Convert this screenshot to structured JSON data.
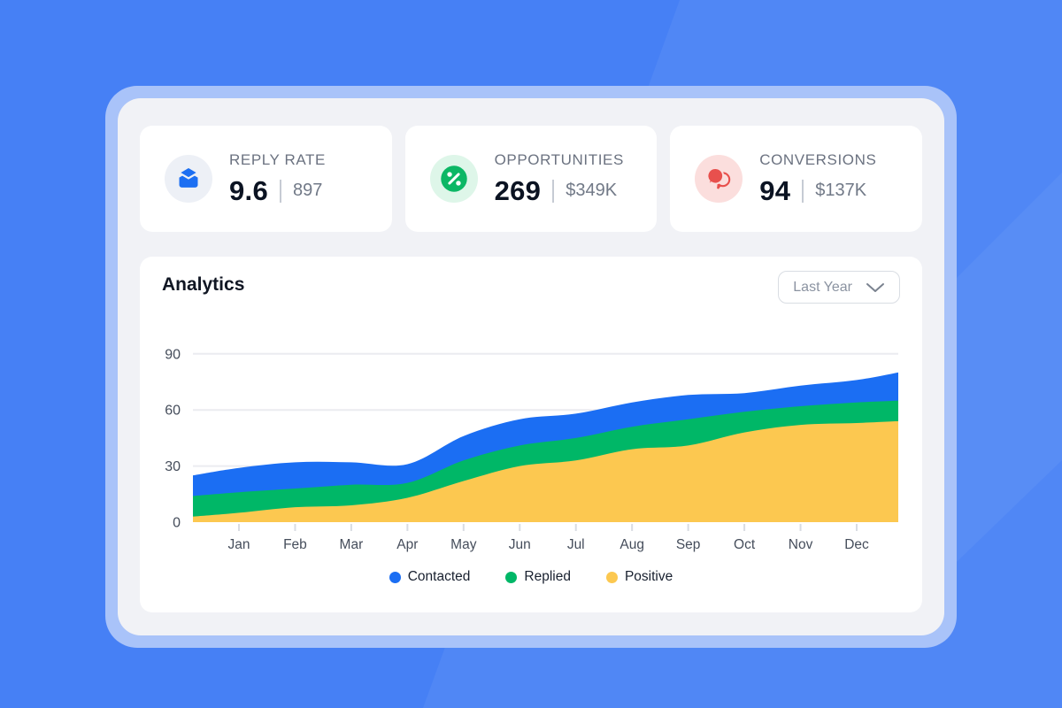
{
  "colors": {
    "background": "#4680F5",
    "frame": "#A9C3F9",
    "panel": "#F1F2F6",
    "card": "#FFFFFF",
    "grid": "#EBECF0",
    "axis_text": "#454D5B",
    "tick": "#D9DCE2"
  },
  "stats": [
    {
      "label": "REPLY RATE",
      "value": "9.6",
      "secondary": "897",
      "icon": "envelope-icon",
      "icon_color": "#1D6FF2",
      "icon_bg": "#EDF0F6"
    },
    {
      "label": "OPPORTUNITIES",
      "value": "269",
      "secondary": "$349K",
      "icon": "percent-icon",
      "icon_color": "#0CB765",
      "icon_bg": "#DEF6E9"
    },
    {
      "label": "CONVERSIONS",
      "value": "94",
      "secondary": "$137K",
      "icon": "chat-bubbles-icon",
      "icon_color": "#E8504D",
      "icon_bg": "#FBDEDD"
    }
  ],
  "analytics": {
    "title": "Analytics",
    "range_selector": {
      "value": "Last Year"
    }
  },
  "chart_data": {
    "type": "area",
    "stacked": true,
    "title": "Analytics",
    "x_labels": [
      "",
      "Jan",
      "Feb",
      "Mar",
      "Apr",
      "May",
      "Jun",
      "Jul",
      "Aug",
      "Sep",
      "Oct",
      "Nov",
      "Dec",
      ""
    ],
    "series": [
      {
        "name": "Contacted",
        "color": "#1B6EF3",
        "values": [
          11,
          13,
          14,
          12,
          10,
          13,
          14,
          13,
          13,
          13,
          10,
          11,
          12,
          15
        ]
      },
      {
        "name": "Replied",
        "color": "#00B767",
        "values": [
          11,
          11,
          10,
          11,
          8,
          11,
          11,
          12,
          12,
          14,
          11,
          10,
          11,
          11
        ]
      },
      {
        "name": "Positive",
        "color": "#FCC850",
        "values": [
          3,
          5,
          8,
          9,
          13,
          22,
          30,
          33,
          39,
          41,
          48,
          52,
          53,
          54
        ]
      }
    ],
    "y_ticks": [
      0,
      30,
      60,
      90
    ],
    "ylim": [
      0,
      95
    ],
    "grid": "horizontal",
    "legend_position": "bottom"
  }
}
